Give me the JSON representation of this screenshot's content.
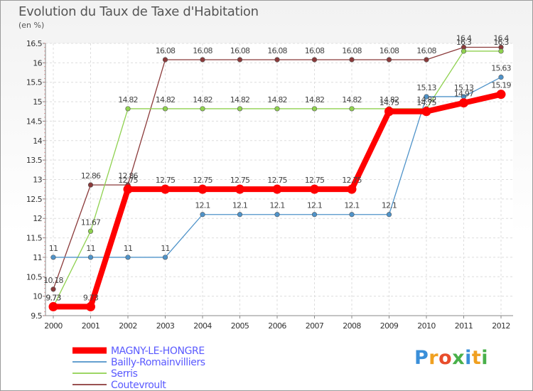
{
  "chart_data": {
    "type": "line",
    "title": "Evolution du Taux de Taxe d'Habitation",
    "subtitle": "(en %)",
    "xlabel": "",
    "ylabel": "",
    "ylim": [
      9.5,
      16.5
    ],
    "y_ticks": [
      "9.5",
      "10",
      "10.5",
      "11",
      "11.5",
      "12",
      "12.5",
      "13",
      "13.5",
      "14",
      "14.5",
      "15",
      "15.5",
      "16",
      "16.5"
    ],
    "categories": [
      "2000",
      "2001",
      "2002",
      "2003",
      "2004",
      "2005",
      "2006",
      "2007",
      "2008",
      "2009",
      "2010",
      "2011",
      "2012"
    ],
    "grid": true,
    "legend_position": "bottom-left",
    "series": [
      {
        "name": "MAGNY-LE-HONGRE",
        "color": "#ff0000",
        "values": [
          9.73,
          9.73,
          12.75,
          12.75,
          12.75,
          12.75,
          12.75,
          12.75,
          12.75,
          14.75,
          14.75,
          14.97,
          15.19
        ],
        "labels": [
          "9.73",
          "9.73",
          "12.75",
          "12.75",
          "12.75",
          "12.75",
          "12.75",
          "12.75",
          "12.75",
          "14.75",
          "14.75",
          "14.97",
          "15.19"
        ]
      },
      {
        "name": "Bailly-Romainvilliers",
        "color": "#4f93c9",
        "values": [
          11,
          11,
          11,
          11,
          12.1,
          12.1,
          12.1,
          12.1,
          12.1,
          12.1,
          15.13,
          15.13,
          15.63
        ],
        "labels": [
          "11",
          "11",
          "11",
          "11",
          "12.1",
          "12.1",
          "12.1",
          "12.1",
          "12.1",
          "12.1",
          "15.13",
          "15.13",
          "15.63"
        ]
      },
      {
        "name": "Serris",
        "color": "#8fd14f",
        "values": [
          9.73,
          11.67,
          14.82,
          14.82,
          14.82,
          14.82,
          14.82,
          14.82,
          14.82,
          14.82,
          14.82,
          16.3,
          16.3
        ],
        "labels": [
          "9.73",
          "11.67",
          "14.82",
          "14.82",
          "14.82",
          "14.82",
          "14.82",
          "14.82",
          "14.82",
          "14.82",
          "14.82",
          "16.3",
          "16.3"
        ]
      },
      {
        "name": "Coutevroult",
        "color": "#8b3a3a",
        "values": [
          10.18,
          12.86,
          12.86,
          16.08,
          16.08,
          16.08,
          16.08,
          16.08,
          16.08,
          16.08,
          16.08,
          16.4,
          16.4
        ],
        "labels": [
          "10.18",
          "12.86",
          "12.86",
          "16.08",
          "16.08",
          "16.08",
          "16.08",
          "16.08",
          "16.08",
          "16.08",
          "16.08",
          "16.4",
          "16.4"
        ]
      }
    ]
  },
  "watermark": {
    "letters": [
      "P",
      "r",
      "o",
      "x",
      "i",
      "t",
      "i"
    ]
  }
}
